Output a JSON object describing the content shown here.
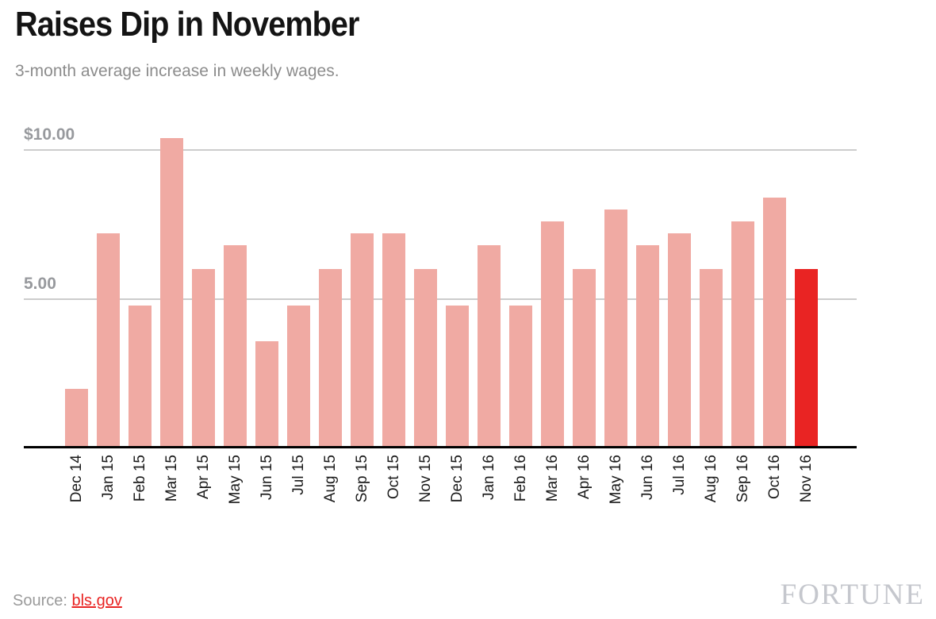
{
  "header": {
    "title": "Raises Dip in November",
    "subtitle": "3-month average increase in weekly wages."
  },
  "footer": {
    "source_label": "Source: ",
    "source_link": "bls.gov",
    "brand": "FORTUNE"
  },
  "colors": {
    "bar": "#f0aaa3",
    "bar_highlight": "#e92423",
    "gridline": "#cccccc",
    "axis": "#000000",
    "ytick_text": "#97999d",
    "xtick_text": "#1a1a1a",
    "link": "#e92423"
  },
  "chart_data": {
    "type": "bar",
    "title": "Raises Dip in November",
    "subtitle": "3-month average increase in weekly wages.",
    "xlabel": "",
    "ylabel": "",
    "ylim": [
      0,
      10.5
    ],
    "grid": "horizontal",
    "legend": "none",
    "categories": [
      "Dec 14",
      "Jan 15",
      "Feb 15",
      "Mar 15",
      "Apr 15",
      "May 15",
      "Jun 15",
      "Jul 15",
      "Aug 15",
      "Sep 15",
      "Oct 15",
      "Nov 15",
      "Dec 15",
      "Jan 16",
      "Feb 16",
      "Mar 16",
      "Apr 16",
      "May 16",
      "Jun 16",
      "Jul 16",
      "Aug 16",
      "Sep 16",
      "Oct 16",
      "Nov 16"
    ],
    "values": [
      2.0,
      7.2,
      4.8,
      10.4,
      6.0,
      6.8,
      3.6,
      4.8,
      6.0,
      7.2,
      7.2,
      6.0,
      4.8,
      6.8,
      4.8,
      7.6,
      6.0,
      8.0,
      6.8,
      7.2,
      6.0,
      7.6,
      8.4,
      6.0
    ],
    "highlight_index": 23,
    "highlight_label": "Nov 16",
    "yticks": [
      {
        "label": "$10.00",
        "value": 10
      },
      {
        "label": "5.00",
        "value": 5
      }
    ]
  }
}
